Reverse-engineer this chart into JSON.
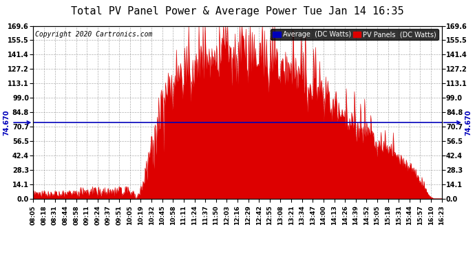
{
  "title": "Total PV Panel Power & Average Power Tue Jan 14 16:35",
  "copyright": "Copyright 2020 Cartronics.com",
  "average_value": 74.67,
  "average_label": "74.670",
  "ymin": 0.0,
  "ymax": 169.6,
  "yticks": [
    0.0,
    14.1,
    28.3,
    42.4,
    56.5,
    70.7,
    84.8,
    99.0,
    113.1,
    127.2,
    141.4,
    155.5,
    169.6
  ],
  "legend_avg_label": "Average  (DC Watts)",
  "legend_pv_label": "PV Panels  (DC Watts)",
  "avg_color": "#0000bb",
  "pv_color": "#dd0000",
  "bg_color": "#ffffff",
  "grid_color": "#999999",
  "x_labels": [
    "08:05",
    "08:18",
    "08:31",
    "08:44",
    "08:58",
    "09:11",
    "09:24",
    "09:37",
    "09:51",
    "10:05",
    "10:19",
    "10:32",
    "10:45",
    "10:58",
    "11:11",
    "11:24",
    "11:37",
    "11:50",
    "12:03",
    "12:16",
    "12:29",
    "12:42",
    "12:55",
    "13:08",
    "13:21",
    "13:34",
    "13:47",
    "14:00",
    "14:13",
    "14:26",
    "14:39",
    "14:52",
    "15:05",
    "15:18",
    "15:31",
    "15:44",
    "15:57",
    "16:10",
    "16:23"
  ],
  "num_points": 600,
  "seed": 12345
}
